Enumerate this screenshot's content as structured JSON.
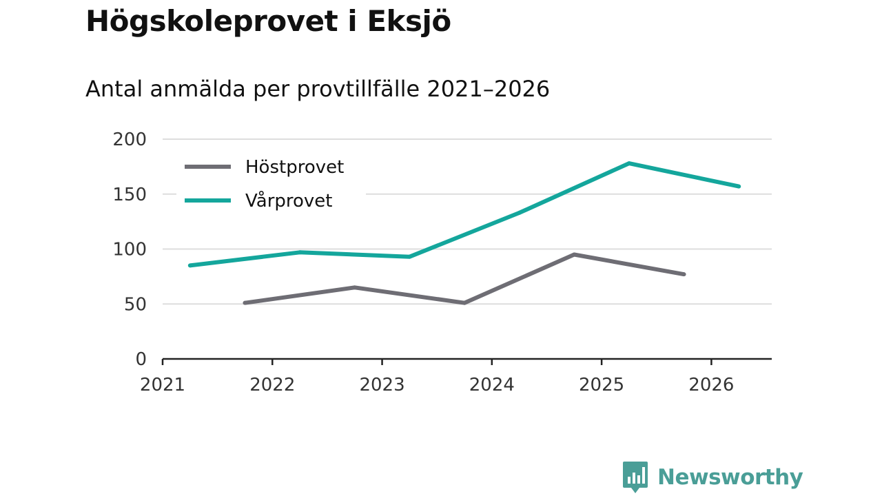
{
  "header": {
    "title": "Högskoleprovet i Eksjö",
    "subtitle": "Antal anmälda per provtillfälle 2021–2026"
  },
  "brand": {
    "name": "Newsworthy",
    "color": "#4a9e97",
    "icon": "bar-chart-speech-bubble-icon"
  },
  "colors": {
    "grid": "#dddddd",
    "axis": "#222222"
  },
  "chart_data": {
    "type": "line",
    "title": "Högskoleprovet i Eksjö",
    "subtitle": "Antal anmälda per provtillfälle 2021–2026",
    "xlabel": "",
    "ylabel": "",
    "xlim": [
      2021,
      2026.55
    ],
    "ylim": [
      0,
      200
    ],
    "x_ticks": [
      2021,
      2022,
      2023,
      2024,
      2025,
      2026
    ],
    "x_tick_labels": [
      "2021",
      "2022",
      "2023",
      "2024",
      "2025",
      "2026"
    ],
    "y_ticks": [
      0,
      50,
      100,
      150,
      200
    ],
    "y_tick_labels": [
      "0",
      "50",
      "100",
      "150",
      "200"
    ],
    "grid": true,
    "legend_position": "top-left",
    "series": [
      {
        "name": "Höstprovet",
        "color": "#6e6d74",
        "points": [
          {
            "x": 2021.75,
            "y": 51
          },
          {
            "x": 2022.75,
            "y": 65
          },
          {
            "x": 2023.75,
            "y": 51
          },
          {
            "x": 2024.75,
            "y": 95
          },
          {
            "x": 2025.75,
            "y": 77
          }
        ]
      },
      {
        "name": "Vårprovet",
        "color": "#14a69c",
        "points": [
          {
            "x": 2021.25,
            "y": 85
          },
          {
            "x": 2022.25,
            "y": 97
          },
          {
            "x": 2023.25,
            "y": 93
          },
          {
            "x": 2024.25,
            "y": 133
          },
          {
            "x": 2025.25,
            "y": 178
          },
          {
            "x": 2026.25,
            "y": 157
          }
        ]
      }
    ]
  }
}
